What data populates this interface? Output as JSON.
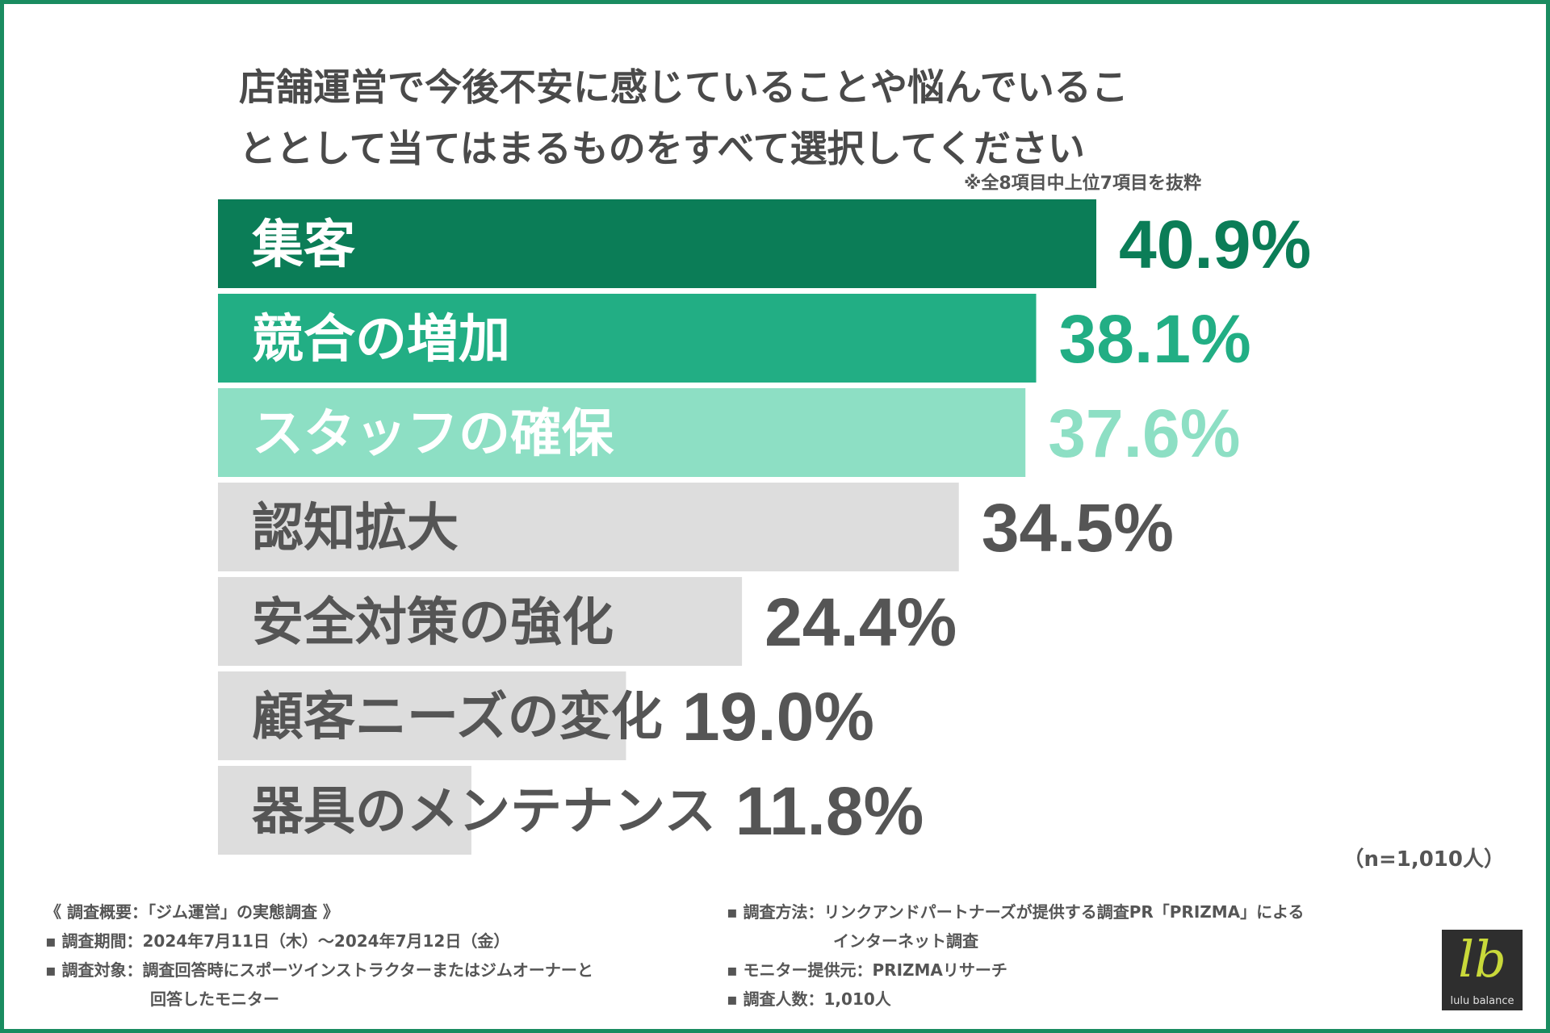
{
  "title": {
    "line1": "店舗運営で今後不安に感じていることや悩んでいるこ",
    "line2": "ととして当てはまるものをすべて選択してください"
  },
  "note": "※全8項目中上位7項目を抜粋",
  "chart_data": {
    "type": "bar",
    "orientation": "horizontal",
    "categories": [
      "集客",
      "競合の増加",
      "スタッフの確保",
      "認知拡大",
      "安全対策の強化",
      "顧客ニーズの変化",
      "器具のメンテナンス"
    ],
    "values": [
      40.9,
      38.1,
      37.6,
      34.5,
      24.4,
      19.0,
      11.8
    ],
    "value_labels": [
      "40.9%",
      "38.1%",
      "37.6%",
      "34.5%",
      "24.4%",
      "19.0%",
      "11.8%"
    ],
    "unit": "%",
    "xlim": [
      0,
      50
    ],
    "bar_colors": [
      "#0b7d57",
      "#22ae84",
      "#8ddfc4",
      "#dddddd",
      "#dddddd",
      "#dddddd",
      "#dddddd"
    ],
    "label_colors": [
      "#ffffff",
      "#ffffff",
      "#ffffff",
      "#555555",
      "#555555",
      "#555555",
      "#555555"
    ],
    "value_colors": [
      "#0b7d57",
      "#22ae84",
      "#8ddfc4",
      "#555555",
      "#555555",
      "#555555",
      "#555555"
    ]
  },
  "sample_size": "（n=1,010人）",
  "footer": {
    "left": [
      "《 調査概要：「ジム運営」の実態調査 》",
      "▪ 調査期間：2024年7月11日（木）～2024年7月12日（金）",
      "▪ 調査対象：調査回答時にスポーツインストラクターまたはジムオーナーと",
      "回答したモニター"
    ],
    "right": [
      "▪ 調査方法：リンクアンドパートナーズが提供する調査PR「PRIZMA」による",
      "インターネット調査",
      "▪ モニター提供元：PRIZMAリサーチ",
      "▪ 調査人数：1,010人"
    ]
  },
  "logo": {
    "mark": "lb",
    "text": "lulu balance"
  }
}
